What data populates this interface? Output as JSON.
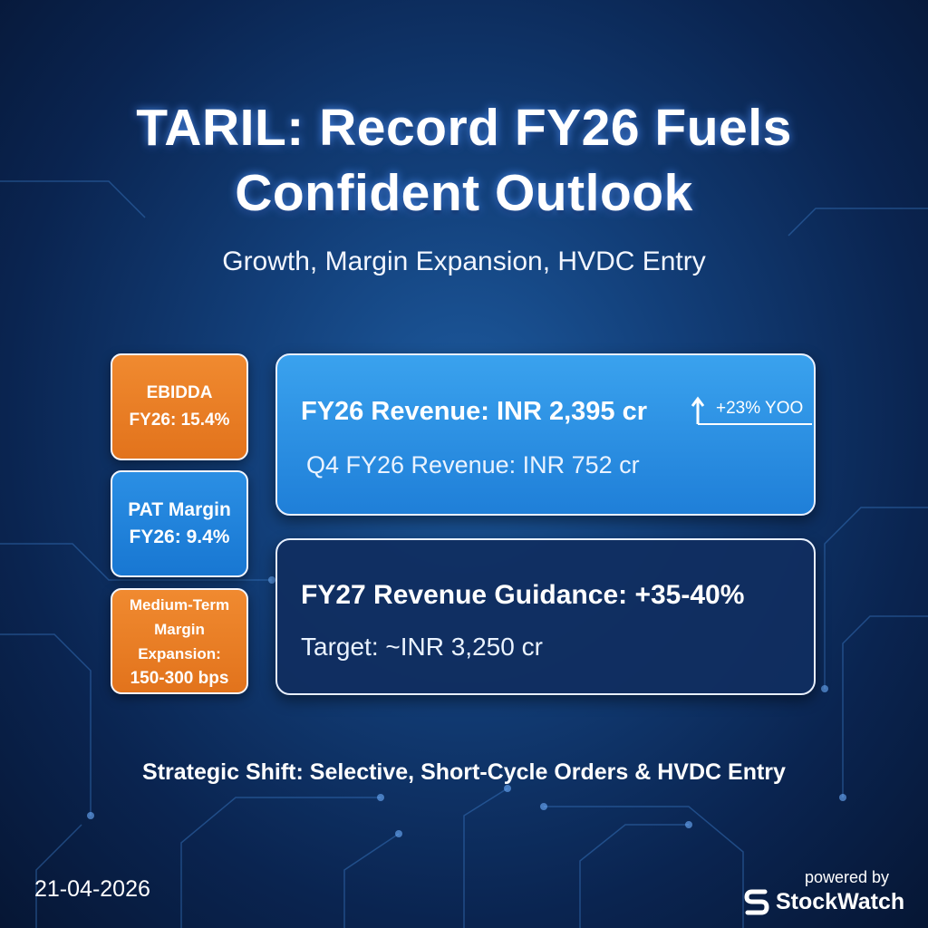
{
  "header": {
    "title_lines": [
      "TARIL: Record FY26 Fuels",
      "Confident Outlook"
    ],
    "subtitle": "Growth, Margin Expansion, HVDC Entry"
  },
  "side_cards": [
    {
      "lines": [
        "EBIDDA",
        "FY26: 15.4%"
      ]
    },
    {
      "lines": [
        "PAT Margin",
        "FY26: 9.4%"
      ]
    },
    {
      "lines": [
        "Medium-Term",
        "Margin Expansion:",
        "150-300 bps"
      ]
    }
  ],
  "main_cards": [
    {
      "headline": "FY26 Revenue: INR 2,395 cr",
      "badge": "+23% YOO",
      "subline": "Q4 FY26 Revenue: INR 752 cr"
    },
    {
      "headline": "FY27 Revenue Guidance: +35-40%",
      "subline": "Target: ~INR 3,250 cr"
    }
  ],
  "footer": {
    "text": "Strategic Shift: Selective, Short-Cycle Orders & HVDC Entry",
    "date": "21-04-2026"
  },
  "branding": {
    "powered_by": "powered by",
    "name": "StockWatch"
  }
}
